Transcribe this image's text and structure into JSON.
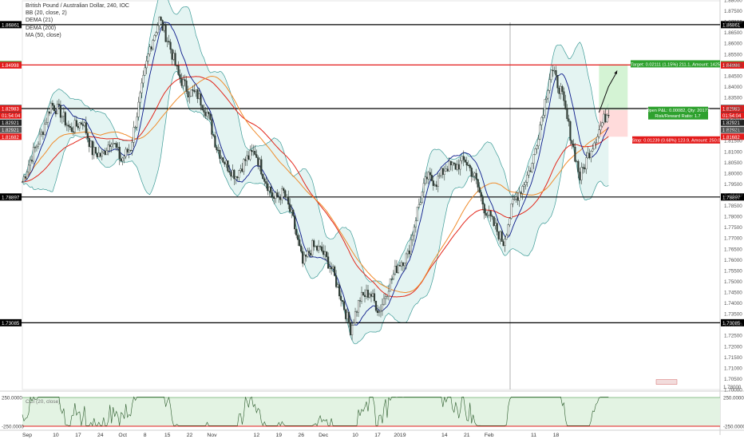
{
  "legend": {
    "title": "British Pound / Australian Dollar, 240, IOC",
    "indicators": [
      "BB (20, close, 2)",
      "DEMA (21)",
      "DEMA (200)",
      "MA (50, close)"
    ]
  },
  "colors": {
    "candle": "#2f3b34",
    "bb_fill": "#dff2f0",
    "bb_line": "#3d9b97",
    "dema21": "#0b1a8a",
    "dema200": "#e3271b",
    "ma50": "#f08c2c",
    "target_zone": "#c9f0c9",
    "stop_zone": "#ffd2d2",
    "level_black": "#000000",
    "level_red": "#e31b1b",
    "rsi_line": "#2a5a2a",
    "rsi_band": "#e3f3e3"
  },
  "chart_data": {
    "type": "candlestick",
    "symbol": "British Pound / Australian Dollar, 240, IOC",
    "y_min": 1.7,
    "y_max": 1.88,
    "y_ticks": [
      "1.88000",
      "1.87500",
      "1.87000",
      "1.86500",
      "1.86000",
      "1.85500",
      "1.85000",
      "1.84500",
      "1.84000",
      "1.83500",
      "1.83000",
      "1.82500",
      "1.82000",
      "1.81500",
      "1.81000",
      "1.80500",
      "1.80000",
      "1.79500",
      "1.79000",
      "1.78500",
      "1.78000",
      "1.77500",
      "1.77000",
      "1.76500",
      "1.76000",
      "1.75500",
      "1.75000",
      "1.74500",
      "1.74000",
      "1.73500",
      "1.73000",
      "1.72500",
      "1.72000",
      "1.71500",
      "1.71000",
      "1.70500",
      "1.70000"
    ],
    "x_ticks": [
      "Sep",
      "10",
      "17",
      "24",
      "Oct",
      "8",
      "15",
      "22",
      "Nov",
      "12",
      "19",
      "26",
      "Dec",
      "10",
      "17",
      "2019",
      "14",
      "21",
      "Feb",
      "11",
      "18"
    ],
    "price_path": [
      {
        "day": 0,
        "price": 1.796
      },
      {
        "day": 3,
        "price": 1.808
      },
      {
        "day": 6,
        "price": 1.818
      },
      {
        "day": 9,
        "price": 1.832
      },
      {
        "day": 12,
        "price": 1.828
      },
      {
        "day": 15,
        "price": 1.82
      },
      {
        "day": 19,
        "price": 1.824
      },
      {
        "day": 22,
        "price": 1.81
      },
      {
        "day": 25,
        "price": 1.808
      },
      {
        "day": 28,
        "price": 1.816
      },
      {
        "day": 31,
        "price": 1.806
      },
      {
        "day": 34,
        "price": 1.812
      },
      {
        "day": 37,
        "price": 1.835
      },
      {
        "day": 40,
        "price": 1.858
      },
      {
        "day": 43,
        "price": 1.871
      },
      {
        "day": 46,
        "price": 1.86
      },
      {
        "day": 49,
        "price": 1.845
      },
      {
        "day": 52,
        "price": 1.838
      },
      {
        "day": 55,
        "price": 1.836
      },
      {
        "day": 58,
        "price": 1.828
      },
      {
        "day": 61,
        "price": 1.812
      },
      {
        "day": 64,
        "price": 1.804
      },
      {
        "day": 67,
        "price": 1.799
      },
      {
        "day": 70,
        "price": 1.806
      },
      {
        "day": 73,
        "price": 1.81
      },
      {
        "day": 76,
        "price": 1.798
      },
      {
        "day": 79,
        "price": 1.788
      },
      {
        "day": 82,
        "price": 1.791
      },
      {
        "day": 85,
        "price": 1.778
      },
      {
        "day": 88,
        "price": 1.758
      },
      {
        "day": 91,
        "price": 1.766
      },
      {
        "day": 94,
        "price": 1.764
      },
      {
        "day": 97,
        "price": 1.756
      },
      {
        "day": 100,
        "price": 1.743
      },
      {
        "day": 103,
        "price": 1.728
      },
      {
        "day": 106,
        "price": 1.742
      },
      {
        "day": 109,
        "price": 1.745
      },
      {
        "day": 112,
        "price": 1.736
      },
      {
        "day": 115,
        "price": 1.748
      },
      {
        "day": 118,
        "price": 1.758
      },
      {
        "day": 121,
        "price": 1.762
      },
      {
        "day": 124,
        "price": 1.783
      },
      {
        "day": 127,
        "price": 1.798
      },
      {
        "day": 130,
        "price": 1.796
      },
      {
        "day": 133,
        "price": 1.803
      },
      {
        "day": 136,
        "price": 1.803
      },
      {
        "day": 139,
        "price": 1.806
      },
      {
        "day": 142,
        "price": 1.798
      },
      {
        "day": 145,
        "price": 1.784
      },
      {
        "day": 148,
        "price": 1.776
      },
      {
        "day": 151,
        "price": 1.768
      },
      {
        "day": 154,
        "price": 1.786
      },
      {
        "day": 157,
        "price": 1.794
      },
      {
        "day": 160,
        "price": 1.804
      },
      {
        "day": 163,
        "price": 1.826
      },
      {
        "day": 166,
        "price": 1.848
      },
      {
        "day": 169,
        "price": 1.838
      },
      {
        "day": 172,
        "price": 1.818
      },
      {
        "day": 175,
        "price": 1.798
      },
      {
        "day": 178,
        "price": 1.81
      },
      {
        "day": 181,
        "price": 1.82
      },
      {
        "day": 184,
        "price": 1.8292
      }
    ],
    "levels": [
      {
        "price": 1.86861,
        "label": "1.86861",
        "color": "#000000"
      },
      {
        "price": 1.84998,
        "label": "1.84998",
        "color": "#e31b1b"
      },
      {
        "price": 1.82983,
        "label": "1.82983",
        "color": "#000000"
      },
      {
        "price": 1.78897,
        "label": "1.78897",
        "color": "#000000"
      },
      {
        "price": 1.73085,
        "label": "1.73085",
        "color": "#000000"
      }
    ],
    "right_labels": [
      {
        "price": 1.85032,
        "label": "1.85032",
        "color": "#2ea12e"
      },
      {
        "price": 1.84998,
        "label": "1.84998",
        "color": "#e31b1b"
      },
      {
        "price": 1.82983,
        "label": "1.82983",
        "color": "#e31b1b"
      },
      {
        "price": 1.82663,
        "label": "01:54:04",
        "color": "#e31b1b"
      },
      {
        "price": 1.82331,
        "label": "1.82921",
        "color": "#222222"
      },
      {
        "price": 1.82,
        "label": "1.82921",
        "color": "#555555"
      },
      {
        "price": 1.81682,
        "label": "1.81682",
        "color": "#e31b1b"
      }
    ],
    "position": {
      "entry_price": 1.82921,
      "target_price": 1.85032,
      "stop_price": 1.81682,
      "target_text": "Target: 0.02111 (1.15%) 211.1, Amount: 1425",
      "open_text": "Open P&L: 0.00082, Qty: 20177",
      "ratio_text": "Risk/Reward Ratio: 1.7",
      "stop_text": "Stop: 0.01239 (0.68%) 123.9, Amount: 250.0"
    },
    "oscillator": {
      "label": "CCI (20, close)",
      "upper": 250,
      "lower": -250,
      "upper_label": "250.0000",
      "lower_label": "-250.0000"
    },
    "marker": "1.78000"
  }
}
